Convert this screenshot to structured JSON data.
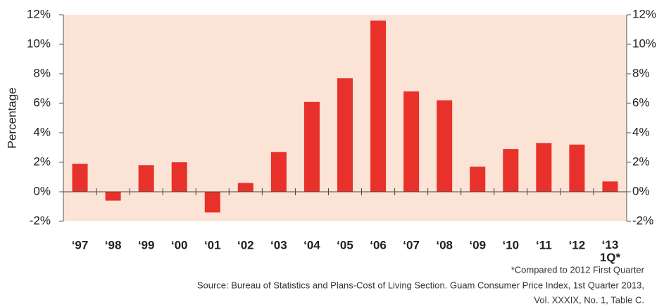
{
  "chart_data": {
    "type": "bar",
    "y_label": "Percentage",
    "categories": [
      "‘97",
      "‘98",
      "‘99",
      "‘00",
      "‘01",
      "‘02",
      "‘03",
      "‘04",
      "‘05",
      "‘06",
      "‘07",
      "‘08",
      "‘09",
      "‘10",
      "‘11",
      "‘12",
      "‘13\n1Q*"
    ],
    "values": [
      1.9,
      -0.6,
      1.8,
      2.0,
      -1.4,
      0.6,
      2.7,
      6.1,
      7.7,
      11.6,
      6.8,
      6.2,
      1.7,
      2.9,
      3.3,
      3.2,
      0.7
    ],
    "color": "#e8312a",
    "background": "#fbe3d6",
    "ylim": [
      -2,
      12
    ],
    "yticks": [
      {
        "value": -2,
        "label": "-2%"
      },
      {
        "value": 0,
        "label": "0%"
      },
      {
        "value": 2,
        "label": "2%"
      },
      {
        "value": 4,
        "label": "4%"
      },
      {
        "value": 6,
        "label": "6%"
      },
      {
        "value": 8,
        "label": "8%"
      },
      {
        "value": 10,
        "label": "10%"
      },
      {
        "value": 12,
        "label": "12%"
      }
    ],
    "y2lim": [
      -2,
      12
    ],
    "y2ticks": [
      {
        "value": -2,
        "label": "-2%"
      },
      {
        "value": 0,
        "label": "0%"
      },
      {
        "value": 2,
        "label": "2%"
      },
      {
        "value": 4,
        "label": "4%"
      },
      {
        "value": 6,
        "label": "6%"
      },
      {
        "value": 8,
        "label": "8%"
      },
      {
        "value": 10,
        "label": "10%"
      },
      {
        "value": 12,
        "label": "12%"
      }
    ],
    "grid": false,
    "notes": [
      "*Compared to 2012 First Quarter",
      "Source: Bureau of Statistics and Plans-Cost of Living Section. Guam Consumer Price Index, 1st Quarter 2013,",
      "Vol. XXXIX, No. 1, Table C."
    ]
  }
}
